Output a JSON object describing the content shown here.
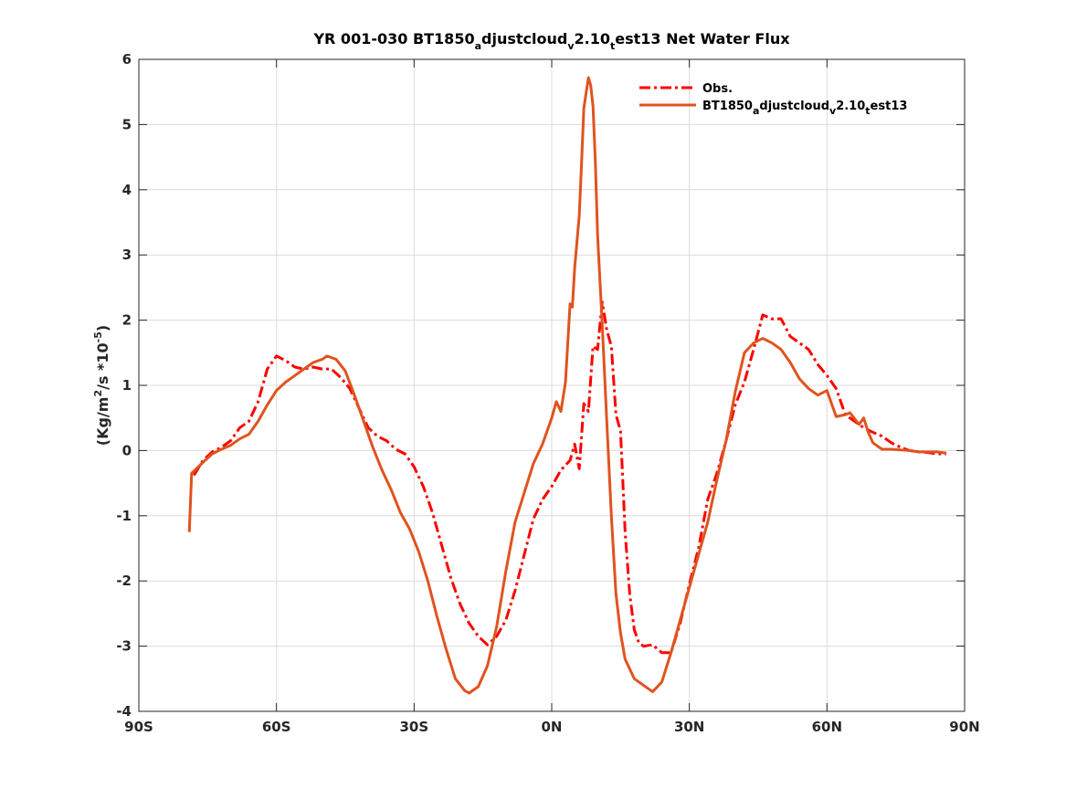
{
  "chart_data": {
    "type": "line",
    "title": {
      "prefix": "YR 001-030 BT1850",
      "segments": [
        {
          "text": "a",
          "sub": true
        },
        {
          "text": "djustcloud",
          "sub": false
        },
        {
          "text": "v",
          "sub": true
        },
        {
          "text": "2.10",
          "sub": false
        },
        {
          "text": "t",
          "sub": true
        },
        {
          "text": "est13  Net Water Flux",
          "sub": false
        }
      ]
    },
    "ylabel": {
      "segments": [
        {
          "text": "(Kg/m",
          "sup": false
        },
        {
          "text": "2",
          "sup": true
        },
        {
          "text": "/s *10",
          "sup": false
        },
        {
          "text": "-5",
          "sup": true
        },
        {
          "text": ")",
          "sup": false
        }
      ]
    },
    "xlabel": "",
    "xlim": [
      -90,
      90
    ],
    "ylim": [
      -4,
      6
    ],
    "x_ticks": [
      -90,
      -60,
      -30,
      0,
      30,
      60,
      90
    ],
    "x_tick_labels": [
      "90S",
      "60S",
      "30S",
      "0N",
      "30N",
      "60N",
      "90N"
    ],
    "y_ticks": [
      -4,
      -3,
      -2,
      -1,
      0,
      1,
      2,
      3,
      4,
      5,
      6
    ],
    "y_tick_labels": [
      "-4",
      "-3",
      "-2",
      "-1",
      "0",
      "1",
      "2",
      "3",
      "4",
      "5",
      "6"
    ],
    "grid": true,
    "legend_position": "top-right",
    "series": [
      {
        "name": "Obs.",
        "legend_segments": [
          {
            "text": "Obs.",
            "sub": false
          }
        ],
        "color": "#ff0000",
        "style": "dashdot",
        "points": [
          [
            -78,
            -0.38
          ],
          [
            -76,
            -0.15
          ],
          [
            -74,
            -0.02
          ],
          [
            -72,
            0.05
          ],
          [
            -70,
            0.15
          ],
          [
            -68,
            0.35
          ],
          [
            -66,
            0.45
          ],
          [
            -64,
            0.75
          ],
          [
            -62,
            1.25
          ],
          [
            -60,
            1.45
          ],
          [
            -58,
            1.38
          ],
          [
            -56,
            1.28
          ],
          [
            -54,
            1.25
          ],
          [
            -52,
            1.28
          ],
          [
            -50,
            1.25
          ],
          [
            -48,
            1.25
          ],
          [
            -46,
            1.12
          ],
          [
            -44,
            0.95
          ],
          [
            -42,
            0.65
          ],
          [
            -40,
            0.35
          ],
          [
            -38,
            0.22
          ],
          [
            -36,
            0.15
          ],
          [
            -34,
            0.02
          ],
          [
            -32,
            -0.05
          ],
          [
            -30,
            -0.25
          ],
          [
            -28,
            -0.55
          ],
          [
            -26,
            -0.95
          ],
          [
            -24,
            -1.45
          ],
          [
            -22,
            -1.95
          ],
          [
            -20,
            -2.35
          ],
          [
            -18,
            -2.65
          ],
          [
            -16,
            -2.85
          ],
          [
            -14,
            -2.98
          ],
          [
            -12,
            -2.85
          ],
          [
            -10,
            -2.6
          ],
          [
            -8,
            -2.15
          ],
          [
            -6,
            -1.6
          ],
          [
            -4,
            -1.05
          ],
          [
            -2,
            -0.75
          ],
          [
            0,
            -0.55
          ],
          [
            2,
            -0.3
          ],
          [
            4,
            -0.15
          ],
          [
            5,
            0.1
          ],
          [
            6,
            -0.28
          ],
          [
            7,
            0.72
          ],
          [
            8,
            0.6
          ],
          [
            9,
            1.6
          ],
          [
            10,
            1.55
          ],
          [
            11,
            2.28
          ],
          [
            12,
            1.85
          ],
          [
            13,
            1.6
          ],
          [
            14,
            0.55
          ],
          [
            15,
            0.3
          ],
          [
            16,
            -1.25
          ],
          [
            17,
            -2.2
          ],
          [
            18,
            -2.75
          ],
          [
            19,
            -2.95
          ],
          [
            20,
            -3.0
          ],
          [
            22,
            -2.98
          ],
          [
            24,
            -3.1
          ],
          [
            26,
            -3.1
          ],
          [
            28,
            -2.65
          ],
          [
            30,
            -2.05
          ],
          [
            32,
            -1.5
          ],
          [
            34,
            -0.75
          ],
          [
            36,
            -0.35
          ],
          [
            38,
            0.15
          ],
          [
            40,
            0.7
          ],
          [
            42,
            1.05
          ],
          [
            44,
            1.55
          ],
          [
            46,
            2.08
          ],
          [
            48,
            2.02
          ],
          [
            50,
            2.02
          ],
          [
            52,
            1.75
          ],
          [
            54,
            1.65
          ],
          [
            56,
            1.55
          ],
          [
            58,
            1.32
          ],
          [
            60,
            1.15
          ],
          [
            62,
            0.95
          ],
          [
            64,
            0.55
          ],
          [
            66,
            0.45
          ],
          [
            68,
            0.35
          ],
          [
            70,
            0.28
          ],
          [
            72,
            0.22
          ],
          [
            74,
            0.12
          ],
          [
            76,
            0.05
          ],
          [
            78,
            0.0
          ],
          [
            80,
            -0.02
          ],
          [
            82,
            -0.03
          ],
          [
            84,
            -0.05
          ],
          [
            86,
            -0.05
          ]
        ]
      },
      {
        "name": "BT1850_adjustcloud_v2.10_test13",
        "legend_segments": [
          {
            "text": "BT1850",
            "sub": false
          },
          {
            "text": "a",
            "sub": true
          },
          {
            "text": "djustcloud",
            "sub": false
          },
          {
            "text": "v",
            "sub": true
          },
          {
            "text": "2.10",
            "sub": false
          },
          {
            "text": "t",
            "sub": true
          },
          {
            "text": "est13",
            "sub": false
          }
        ],
        "color": "#e0531f",
        "style": "solid",
        "points": [
          [
            -79,
            -1.25
          ],
          [
            -78.5,
            -0.35
          ],
          [
            -76,
            -0.18
          ],
          [
            -74,
            -0.05
          ],
          [
            -72,
            0.02
          ],
          [
            -70,
            0.08
          ],
          [
            -68,
            0.18
          ],
          [
            -66,
            0.25
          ],
          [
            -64,
            0.45
          ],
          [
            -62,
            0.7
          ],
          [
            -60,
            0.92
          ],
          [
            -58,
            1.05
          ],
          [
            -56,
            1.15
          ],
          [
            -54,
            1.25
          ],
          [
            -52,
            1.35
          ],
          [
            -50,
            1.4
          ],
          [
            -49,
            1.45
          ],
          [
            -47,
            1.4
          ],
          [
            -45,
            1.22
          ],
          [
            -43,
            0.85
          ],
          [
            -41,
            0.45
          ],
          [
            -39,
            0.05
          ],
          [
            -37,
            -0.3
          ],
          [
            -35,
            -0.6
          ],
          [
            -33,
            -0.95
          ],
          [
            -31,
            -1.2
          ],
          [
            -29,
            -1.55
          ],
          [
            -27,
            -2.0
          ],
          [
            -25,
            -2.55
          ],
          [
            -23,
            -3.05
          ],
          [
            -21,
            -3.5
          ],
          [
            -19,
            -3.68
          ],
          [
            -18,
            -3.72
          ],
          [
            -16,
            -3.62
          ],
          [
            -14,
            -3.3
          ],
          [
            -12,
            -2.7
          ],
          [
            -10,
            -1.85
          ],
          [
            -8,
            -1.1
          ],
          [
            -6,
            -0.65
          ],
          [
            -4,
            -0.2
          ],
          [
            -2,
            0.1
          ],
          [
            0,
            0.5
          ],
          [
            1,
            0.75
          ],
          [
            2,
            0.6
          ],
          [
            3,
            1.05
          ],
          [
            4,
            2.25
          ],
          [
            4.5,
            2.2
          ],
          [
            5,
            2.8
          ],
          [
            6,
            3.6
          ],
          [
            6.5,
            4.4
          ],
          [
            7,
            5.25
          ],
          [
            8,
            5.72
          ],
          [
            8.5,
            5.6
          ],
          [
            9,
            5.28
          ],
          [
            9.5,
            4.45
          ],
          [
            10,
            3.3
          ],
          [
            11,
            1.95
          ],
          [
            12,
            0.45
          ],
          [
            13,
            -1.0
          ],
          [
            14,
            -2.2
          ],
          [
            15,
            -2.8
          ],
          [
            16,
            -3.2
          ],
          [
            18,
            -3.5
          ],
          [
            20,
            -3.6
          ],
          [
            22,
            -3.7
          ],
          [
            24,
            -3.55
          ],
          [
            26,
            -3.1
          ],
          [
            28,
            -2.6
          ],
          [
            30,
            -2.1
          ],
          [
            32,
            -1.6
          ],
          [
            34,
            -1.1
          ],
          [
            36,
            -0.45
          ],
          [
            38,
            0.15
          ],
          [
            40,
            0.9
          ],
          [
            42,
            1.5
          ],
          [
            44,
            1.65
          ],
          [
            46,
            1.72
          ],
          [
            48,
            1.65
          ],
          [
            50,
            1.55
          ],
          [
            52,
            1.35
          ],
          [
            54,
            1.1
          ],
          [
            56,
            0.95
          ],
          [
            58,
            0.85
          ],
          [
            60,
            0.92
          ],
          [
            62,
            0.52
          ],
          [
            64,
            0.55
          ],
          [
            65,
            0.58
          ],
          [
            67,
            0.4
          ],
          [
            68,
            0.5
          ],
          [
            69,
            0.28
          ],
          [
            70,
            0.12
          ],
          [
            72,
            0.02
          ],
          [
            74,
            0.02
          ],
          [
            76,
            0.01
          ],
          [
            78,
            0.0
          ],
          [
            80,
            -0.02
          ],
          [
            82,
            -0.02
          ],
          [
            84,
            -0.02
          ],
          [
            86,
            -0.04
          ]
        ]
      }
    ]
  }
}
